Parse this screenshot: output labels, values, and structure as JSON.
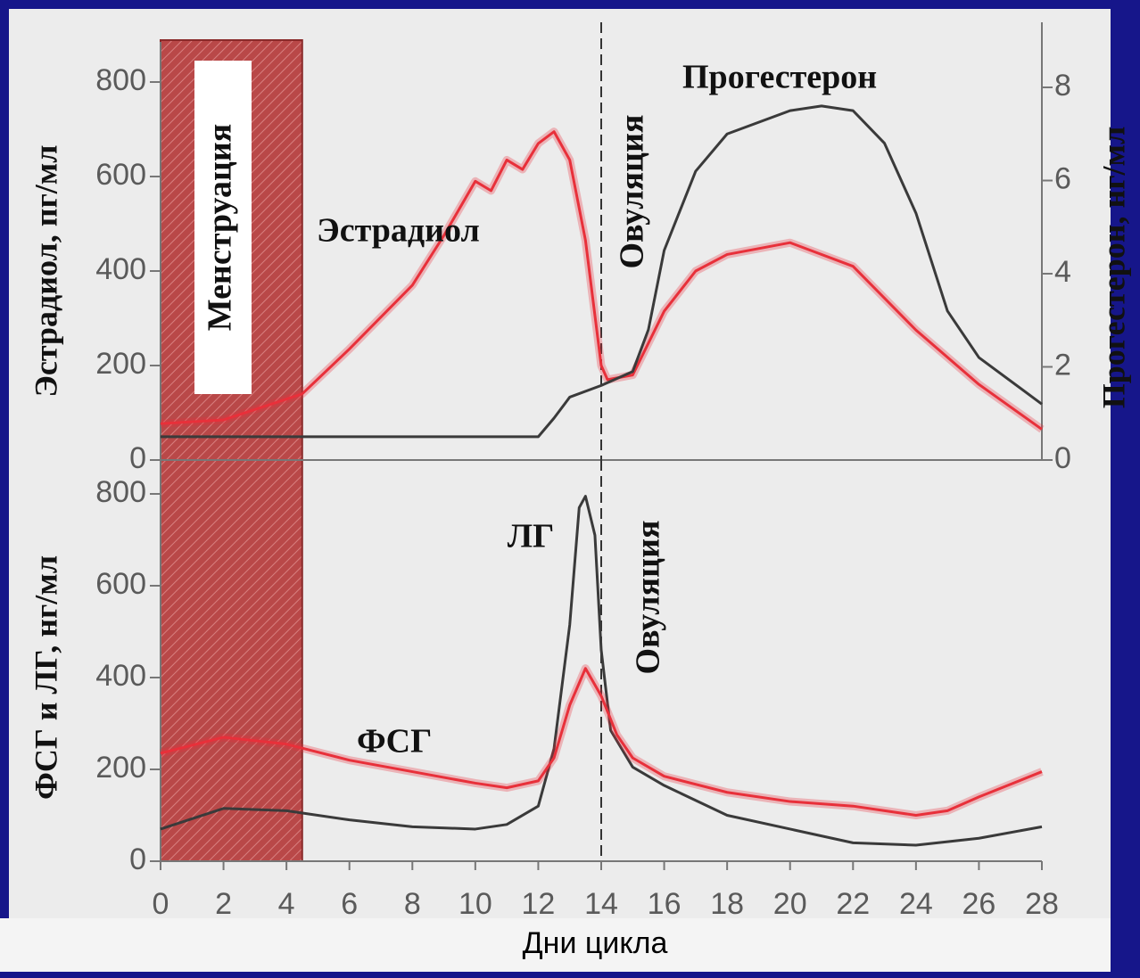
{
  "chart_data": [
    {
      "type": "line",
      "y_label": "Эстрадиол, пг/мл",
      "y2_label": "Прогестерон, нг/мл",
      "xlim": [
        0,
        28
      ],
      "ylim": [
        0,
        800
      ],
      "yticks": [
        0,
        200,
        400,
        600,
        800
      ],
      "y2lim": [
        0,
        8
      ],
      "y2ticks": [
        0,
        2,
        4,
        6,
        8
      ],
      "menstruation": {
        "label": "Менструация",
        "x": [
          0,
          4.5
        ]
      },
      "ovulation": {
        "label": "Овуляция",
        "x": 14
      },
      "series": [
        {
          "name": "Эстрадиол",
          "color": "#e8303a",
          "axis": "y",
          "x": [
            0,
            2,
            4.5,
            6,
            8,
            9,
            10,
            10.5,
            11,
            11.5,
            12,
            12.5,
            13,
            13.5,
            14,
            14.2,
            15,
            16,
            17,
            18,
            20,
            22,
            24,
            26,
            28
          ],
          "values": [
            77,
            85,
            140,
            235,
            370,
            475,
            590,
            570,
            635,
            615,
            670,
            695,
            635,
            465,
            200,
            170,
            180,
            315,
            400,
            435,
            460,
            410,
            275,
            160,
            65
          ]
        },
        {
          "name": "Прогестерон",
          "color": "#3a3a3a",
          "axis": "y2",
          "x": [
            0,
            12,
            12.5,
            13,
            14,
            15,
            15.5,
            16,
            17,
            18,
            20,
            21,
            22,
            23,
            24,
            25,
            26,
            28
          ],
          "values": [
            0.5,
            0.5,
            0.9,
            1.35,
            1.6,
            1.9,
            2.8,
            4.5,
            6.2,
            7.0,
            7.5,
            7.6,
            7.5,
            6.8,
            5.3,
            3.2,
            2.2,
            1.2
          ]
        }
      ]
    },
    {
      "type": "line",
      "y_label": "ФСГ и ЛГ, нг/мл",
      "x_label": "Дни цикла",
      "xlim": [
        0,
        28
      ],
      "xticks": [
        0,
        2,
        4,
        6,
        8,
        10,
        12,
        14,
        16,
        18,
        20,
        22,
        24,
        26,
        28
      ],
      "ylim": [
        0,
        800
      ],
      "yticks": [
        0,
        200,
        400,
        600,
        800
      ],
      "ovulation": {
        "label": "Овуляция",
        "x": 14
      },
      "series": [
        {
          "name": "ЛГ",
          "color": "#3a3a3a",
          "x": [
            0,
            2,
            4,
            6,
            8,
            10,
            11,
            12,
            12.5,
            13,
            13.3,
            13.5,
            13.8,
            14,
            14.3,
            15,
            16,
            18,
            20,
            22,
            24,
            26,
            28
          ],
          "values": [
            70,
            115,
            110,
            90,
            75,
            70,
            80,
            120,
            245,
            515,
            770,
            795,
            710,
            460,
            285,
            205,
            165,
            100,
            70,
            40,
            35,
            50,
            75
          ]
        },
        {
          "name": "ФСГ",
          "color": "#e8303a",
          "x": [
            0,
            2,
            4,
            6,
            8,
            10,
            11,
            12,
            12.5,
            13,
            13.5,
            14,
            14.5,
            15,
            16,
            18,
            20,
            22,
            24,
            25,
            26,
            28
          ],
          "values": [
            235,
            270,
            255,
            220,
            195,
            170,
            160,
            175,
            225,
            340,
            420,
            360,
            275,
            225,
            185,
            150,
            130,
            120,
            100,
            110,
            140,
            195
          ]
        }
      ]
    }
  ]
}
